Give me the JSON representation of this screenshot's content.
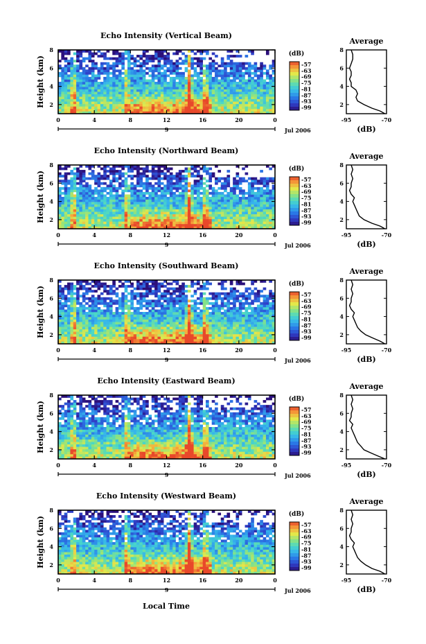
{
  "figure": {
    "date_label": "Jul 2006",
    "x_axis_title": "Local Time",
    "day_label": "9",
    "y_axis_title": "Height (km)",
    "colorbar_unit": "(dB)",
    "avg_title": "Average",
    "avg_xlabel": "(dB)",
    "x_ticks": [
      "0",
      "4",
      "8",
      "12",
      "16",
      "20",
      "0"
    ],
    "y_ticks": [
      "2",
      "4",
      "6",
      "8"
    ],
    "avg_x_ticks": [
      "-95",
      "-70"
    ],
    "avg_y_ticks": [
      "2",
      "4",
      "6",
      "8"
    ],
    "colorbar_ticks": [
      "-57",
      "-63",
      "-69",
      "-75",
      "-81",
      "-87",
      "-93",
      "-99"
    ],
    "colorbar_colors": [
      "#2b0f7a",
      "#2f3fc8",
      "#2a78e6",
      "#35b3ec",
      "#49d7c8",
      "#8fe37e",
      "#e3e84a",
      "#f6a33a",
      "#e8482a"
    ]
  },
  "chart_data": [
    {
      "type": "heatmap",
      "title": "Echo Intensity (Vertical Beam)",
      "xlabel": "",
      "ylabel": "Height (km)",
      "xlim": [
        0,
        24
      ],
      "ylim": [
        1,
        8
      ],
      "colorbar": {
        "label": "(dB)",
        "range": [
          -99,
          -57
        ]
      },
      "spikes_hour": [
        1.7,
        7.6,
        14.5,
        16.3
      ],
      "average_profile": {
        "title": "Average",
        "xlabel": "(dB)",
        "xlim": [
          -95,
          -70
        ],
        "ylim": [
          1,
          8
        ],
        "height": [
          1.0,
          1.3,
          1.6,
          2.0,
          2.4,
          2.8,
          3.2,
          3.6,
          4.0,
          4.4,
          4.8,
          5.2,
          5.6,
          6.0,
          6.5,
          7.0,
          7.5,
          8.0
        ],
        "db": [
          -71,
          -74,
          -79,
          -84,
          -88,
          -89,
          -88,
          -89,
          -92,
          -92,
          -93,
          -92,
          -92,
          -93,
          -92,
          -91,
          -91,
          -92
        ]
      }
    },
    {
      "type": "heatmap",
      "title": "Echo Intensity (Northward Beam)",
      "xlabel": "",
      "ylabel": "Height (km)",
      "xlim": [
        0,
        24
      ],
      "ylim": [
        1,
        8
      ],
      "colorbar": {
        "label": "(dB)",
        "range": [
          -99,
          -57
        ]
      },
      "spikes_hour": [
        1.7,
        7.6,
        14.5,
        16.3
      ],
      "average_profile": {
        "title": "Average",
        "xlabel": "(dB)",
        "xlim": [
          -95,
          -70
        ],
        "ylim": [
          1,
          8
        ],
        "height": [
          1.0,
          1.3,
          1.6,
          2.0,
          2.4,
          2.8,
          3.2,
          3.6,
          4.0,
          4.4,
          4.8,
          5.2,
          5.6,
          6.0,
          6.5,
          7.0,
          7.5,
          8.0
        ],
        "db": [
          -71,
          -74,
          -79,
          -84,
          -87,
          -88,
          -89,
          -90,
          -91,
          -90,
          -92,
          -93,
          -92,
          -92,
          -91,
          -92,
          -91,
          -92
        ]
      }
    },
    {
      "type": "heatmap",
      "title": "Echo Intensity (Southward Beam)",
      "xlabel": "",
      "ylabel": "Height (km)",
      "xlim": [
        0,
        24
      ],
      "ylim": [
        1,
        8
      ],
      "colorbar": {
        "label": "(dB)",
        "range": [
          -99,
          -57
        ]
      },
      "spikes_hour": [
        1.7,
        7.6,
        14.5,
        16.3
      ],
      "average_profile": {
        "title": "Average",
        "xlabel": "(dB)",
        "xlim": [
          -95,
          -70
        ],
        "ylim": [
          1,
          8
        ],
        "height": [
          1.0,
          1.3,
          1.6,
          2.0,
          2.4,
          2.8,
          3.2,
          3.6,
          4.0,
          4.4,
          4.8,
          5.2,
          5.6,
          6.0,
          6.5,
          7.0,
          7.5,
          8.0
        ],
        "db": [
          -71,
          -74,
          -78,
          -83,
          -86,
          -88,
          -89,
          -90,
          -91,
          -90,
          -92,
          -93,
          -92,
          -92,
          -91,
          -92,
          -91,
          -92
        ]
      }
    },
    {
      "type": "heatmap",
      "title": "Echo Intensity (Eastward Beam)",
      "xlabel": "",
      "ylabel": "Height (km)",
      "xlim": [
        0,
        24
      ],
      "ylim": [
        1,
        8
      ],
      "colorbar": {
        "label": "(dB)",
        "range": [
          -99,
          -57
        ]
      },
      "spikes_hour": [
        1.7,
        7.6,
        14.5,
        16.3
      ],
      "average_profile": {
        "title": "Average",
        "xlabel": "(dB)",
        "xlim": [
          -95,
          -70
        ],
        "ylim": [
          1,
          8
        ],
        "height": [
          1.0,
          1.3,
          1.6,
          2.0,
          2.4,
          2.8,
          3.2,
          3.6,
          4.0,
          4.4,
          4.8,
          5.2,
          5.6,
          6.0,
          6.5,
          7.0,
          7.5,
          8.0
        ],
        "db": [
          -71,
          -75,
          -79,
          -84,
          -86,
          -88,
          -89,
          -90,
          -91,
          -92,
          -91,
          -93,
          -92,
          -92,
          -91,
          -92,
          -91,
          -92
        ]
      }
    },
    {
      "type": "heatmap",
      "title": "Echo Intensity (Westward Beam)",
      "xlabel": "Local Time",
      "ylabel": "Height (km)",
      "xlim": [
        0,
        24
      ],
      "ylim": [
        1,
        8
      ],
      "colorbar": {
        "label": "(dB)",
        "range": [
          -99,
          -57
        ]
      },
      "spikes_hour": [
        1.7,
        7.6,
        14.5,
        16.3
      ],
      "average_profile": {
        "title": "Average",
        "xlabel": "(dB)",
        "xlim": [
          -95,
          -70
        ],
        "ylim": [
          1,
          8
        ],
        "height": [
          1.0,
          1.3,
          1.6,
          2.0,
          2.4,
          2.8,
          3.2,
          3.6,
          4.0,
          4.4,
          4.8,
          5.2,
          5.6,
          6.0,
          6.5,
          7.0,
          7.5,
          8.0
        ],
        "db": [
          -71,
          -74,
          -79,
          -83,
          -86,
          -88,
          -89,
          -90,
          -91,
          -90,
          -92,
          -93,
          -92,
          -92,
          -91,
          -92,
          -91,
          -92
        ]
      }
    }
  ]
}
